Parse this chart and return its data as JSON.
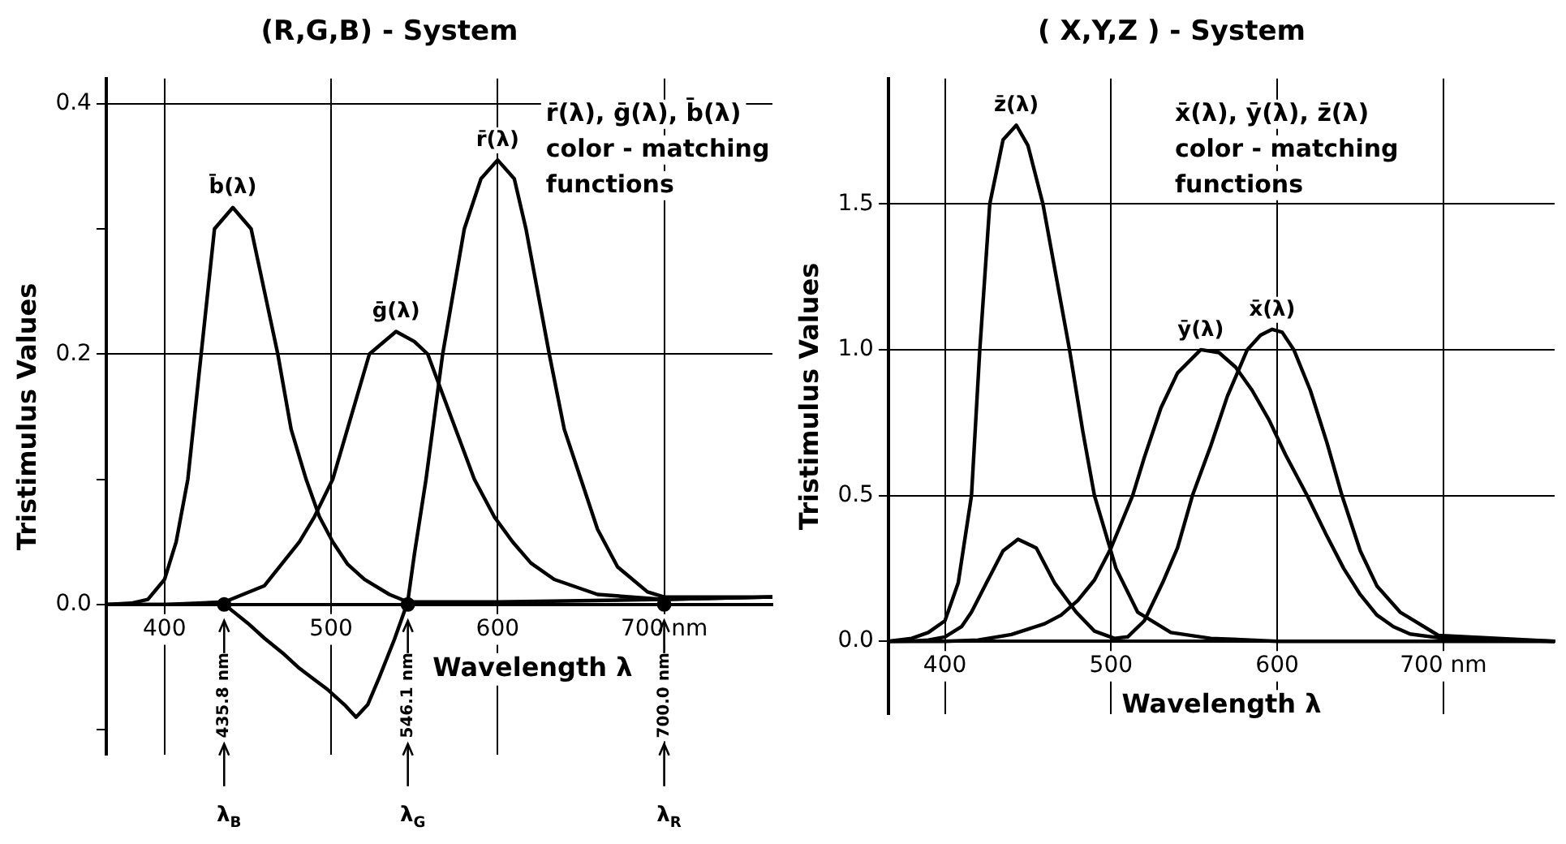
{
  "chart_data": [
    {
      "type": "line",
      "title": "(R,G,B) - System",
      "xlabel": "Wavelength λ",
      "ylabel": "Tristimulus Values",
      "xlim": [
        365,
        765
      ],
      "ylim": [
        -0.12,
        0.42
      ],
      "xticks": [
        400,
        500,
        600,
        {
          "value": 700,
          "label": "700 nm"
        }
      ],
      "yticks": [
        {
          "value": -0.1,
          "label": null
        },
        {
          "value": 0,
          "label": "0.0"
        },
        {
          "value": 0.1,
          "label": null
        },
        {
          "value": 0.2,
          "label": "0.2"
        },
        {
          "value": 0.3,
          "label": null
        },
        {
          "value": 0.4,
          "label": "0.4"
        }
      ],
      "grid": true,
      "marker": "none",
      "line_style": "solid",
      "series": [
        {
          "name": "b̄(λ)",
          "color": "#000000",
          "x": [
            365,
            380,
            390,
            400,
            407,
            414,
            422,
            430,
            441,
            452,
            460,
            468,
            476,
            485,
            493,
            501,
            510,
            520,
            535,
            546,
            600,
            700,
            765
          ],
          "values": [
            0,
            0.001,
            0.004,
            0.02,
            0.05,
            0.1,
            0.2,
            0.3,
            0.317,
            0.3,
            0.25,
            0.2,
            0.14,
            0.1,
            0.07,
            0.05,
            0.032,
            0.02,
            0.008,
            0.002,
            0.002,
            0.004,
            0.006
          ]
        },
        {
          "name": "ḡ(λ)",
          "color": "#000000",
          "x": [
            365,
            400,
            436,
            460,
            481,
            490,
            501,
            512,
            523,
            539,
            550,
            558,
            572,
            586,
            598,
            609,
            620,
            634,
            660,
            700,
            765
          ],
          "values": [
            0,
            0,
            0.002,
            0.015,
            0.05,
            0.07,
            0.1,
            0.15,
            0.2,
            0.218,
            0.21,
            0.2,
            0.15,
            0.1,
            0.07,
            0.05,
            0.033,
            0.02,
            0.008,
            0.004,
            0.006
          ]
        },
        {
          "name": "r̄(λ)",
          "color": "#000000",
          "x": [
            365,
            400,
            436,
            450,
            460,
            472,
            481,
            490,
            498,
            508,
            515,
            522,
            529,
            538,
            546,
            550,
            557,
            567,
            580,
            590,
            600,
            610,
            617,
            631,
            640,
            650,
            660,
            672,
            690,
            700,
            765
          ],
          "values": [
            0,
            0,
            0,
            -0.015,
            -0.027,
            -0.04,
            -0.051,
            -0.06,
            -0.068,
            -0.08,
            -0.09,
            -0.08,
            -0.058,
            -0.028,
            0.002,
            0.04,
            0.1,
            0.2,
            0.3,
            0.34,
            0.355,
            0.34,
            0.3,
            0.2,
            0.14,
            0.1,
            0.06,
            0.03,
            0.01,
            0.006,
            0.006
          ]
        },
        {
          "type": "scatter",
          "marker": "circle",
          "color": "#000000",
          "x": [
            435.8,
            546.1,
            700
          ],
          "values": [
            0,
            0,
            0
          ]
        }
      ],
      "annotations": [
        "r̄(λ), ḡ(λ), b̄(λ)",
        "color - matching",
        "functions",
        {
          "text": "435.8 nm",
          "x": 435.8
        },
        {
          "text": "λ$_{B}$",
          "x": 435.8
        },
        {
          "text": "546.1 nm",
          "x": 546.1
        },
        {
          "text": "λ$_{G}$",
          "x": 546.1
        },
        {
          "text": "700.0 nm",
          "x": 700
        },
        {
          "text": "λ$_{R}$",
          "x": 700
        }
      ]
    },
    {
      "type": "line",
      "title": "( X,Y,Z ) - System",
      "xlabel": "Wavelength λ",
      "ylabel": "Tristimulus Values",
      "xlim": [
        366,
        767
      ],
      "ylim": [
        -0.25,
        1.93
      ],
      "xticks": [
        400,
        500,
        600,
        {
          "value": 700,
          "label": "700 nm"
        }
      ],
      "yticks": [
        {
          "value": 0,
          "label": "0.0"
        },
        {
          "value": 0.5,
          "label": "0.5"
        },
        {
          "value": 1,
          "label": "1.0"
        },
        {
          "value": 1.5,
          "label": "1.5"
        }
      ],
      "grid": true,
      "marker": "none",
      "line_style": "solid",
      "series": [
        {
          "name": "z̄(λ)",
          "color": "#000000",
          "x": [
            366,
            380,
            390,
            400,
            408,
            416,
            421,
            427,
            435,
            443,
            450,
            459,
            467,
            475,
            483,
            490,
            503,
            516,
            536,
            560,
            600,
            767
          ],
          "values": [
            0,
            0.01,
            0.03,
            0.07,
            0.2,
            0.5,
            1.0,
            1.5,
            1.72,
            1.77,
            1.7,
            1.5,
            1.25,
            1.0,
            0.72,
            0.5,
            0.25,
            0.1,
            0.03,
            0.01,
            0,
            0
          ]
        },
        {
          "name": "ȳ(λ)",
          "color": "#000000",
          "x": [
            366,
            400,
            420,
            440,
            460,
            470,
            480,
            490,
            500,
            513,
            520,
            530,
            540,
            554,
            565,
            575,
            585,
            595,
            605,
            618,
            630,
            640,
            650,
            660,
            670,
            680,
            700,
            767
          ],
          "values": [
            0,
            0,
            0.004,
            0.023,
            0.06,
            0.09,
            0.14,
            0.21,
            0.32,
            0.5,
            0.63,
            0.8,
            0.92,
            1.0,
            0.99,
            0.94,
            0.86,
            0.76,
            0.64,
            0.5,
            0.36,
            0.25,
            0.16,
            0.09,
            0.05,
            0.025,
            0.01,
            0
          ]
        },
        {
          "name": "x̄(λ)",
          "color": "#000000",
          "x": [
            366,
            380,
            390,
            400,
            410,
            416,
            425,
            435,
            444,
            455,
            466,
            479,
            490,
            502,
            510,
            520,
            531,
            540,
            549,
            560,
            570,
            582,
            590,
            597,
            603,
            610,
            620,
            630,
            639,
            650,
            660,
            674,
            697,
            767
          ],
          "values": [
            0,
            0.001,
            0.004,
            0.015,
            0.05,
            0.1,
            0.2,
            0.31,
            0.35,
            0.32,
            0.2,
            0.1,
            0.035,
            0.01,
            0.015,
            0.07,
            0.2,
            0.32,
            0.5,
            0.67,
            0.84,
            1.0,
            1.05,
            1.07,
            1.06,
            1.0,
            0.86,
            0.68,
            0.5,
            0.31,
            0.19,
            0.1,
            0.02,
            0
          ]
        }
      ],
      "annotations": [
        "x̄(λ), ȳ(λ), z̄(λ)",
        "color - matching",
        "functions"
      ]
    }
  ]
}
